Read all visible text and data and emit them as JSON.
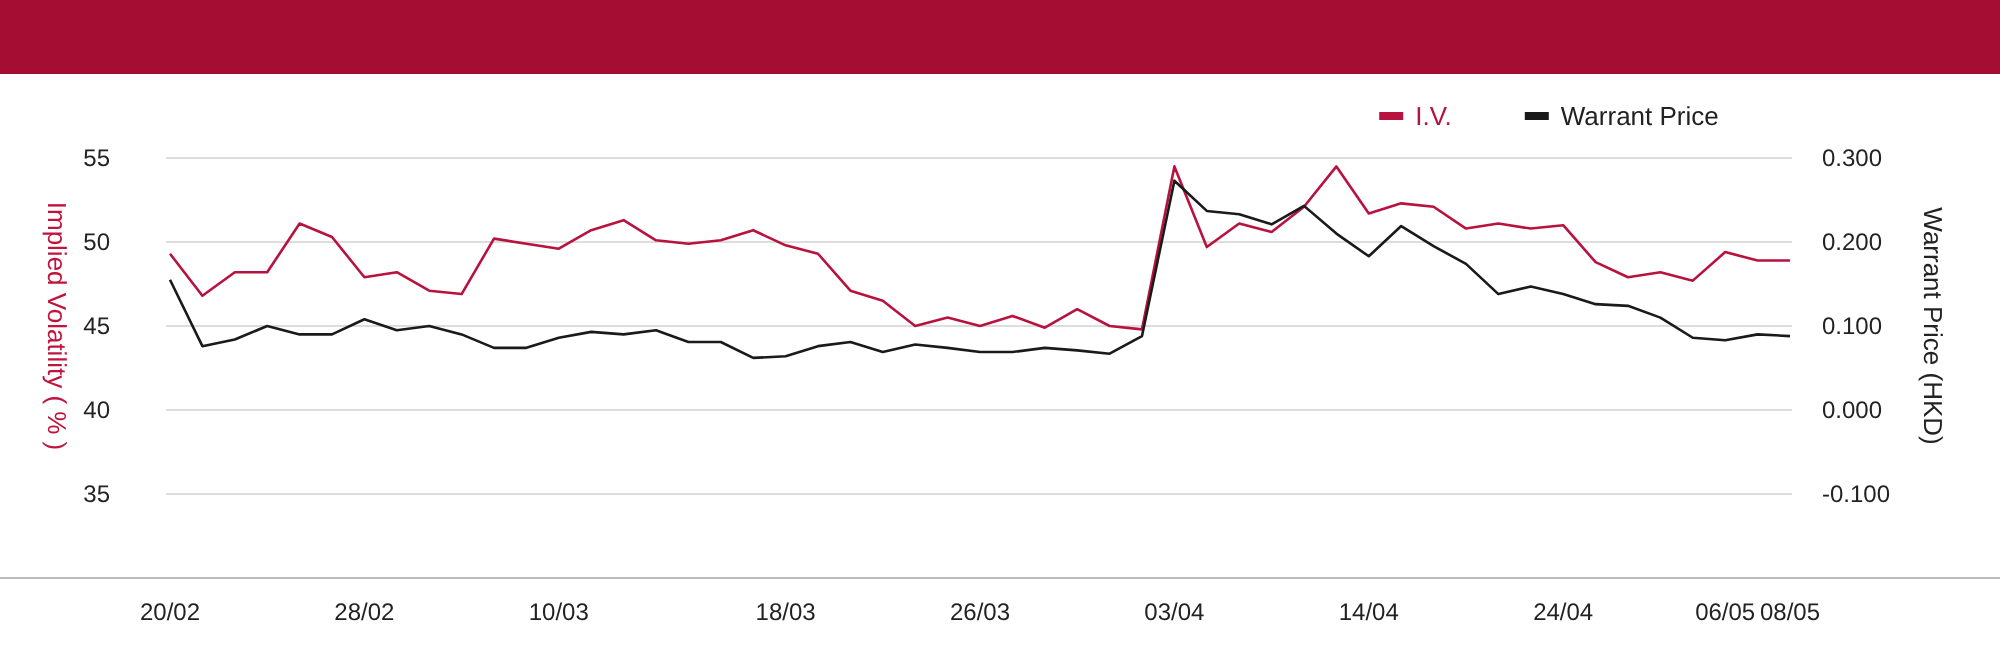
{
  "chart_data": {
    "type": "line",
    "categories": [
      "20/02",
      null,
      null,
      null,
      null,
      null,
      "28/02",
      null,
      null,
      null,
      null,
      null,
      "10/03",
      null,
      null,
      null,
      null,
      null,
      null,
      "18/03",
      null,
      null,
      null,
      null,
      null,
      "26/03",
      null,
      null,
      null,
      null,
      null,
      "03/04",
      null,
      null,
      null,
      null,
      null,
      "14/04",
      null,
      null,
      null,
      null,
      null,
      "24/04",
      null,
      null,
      null,
      null,
      "06/05",
      null,
      "08/05"
    ],
    "series": [
      {
        "name": "I.V.",
        "color": "#b8123f",
        "values": [
          49.3,
          46.8,
          48.2,
          48.2,
          51.1,
          50.3,
          47.9,
          48.2,
          47.1,
          46.9,
          50.2,
          49.9,
          49.6,
          50.7,
          51.3,
          50.1,
          49.9,
          50.1,
          50.7,
          49.8,
          49.3,
          47.1,
          46.5,
          45.0,
          45.5,
          45.0,
          45.6,
          44.9,
          46.0,
          45.0,
          44.8,
          54.5,
          49.7,
          51.1,
          50.6,
          52.1,
          54.5,
          51.7,
          52.3,
          52.1,
          50.8,
          51.1,
          50.8,
          51.0,
          48.8,
          47.9,
          48.2,
          47.7,
          49.4,
          48.9,
          48.9
        ]
      },
      {
        "name": "Warrant Price",
        "color": "#1a1a1a",
        "axis": "y2",
        "values": [
          0.155,
          0.076,
          0.084,
          0.1,
          0.09,
          0.09,
          0.108,
          0.095,
          0.1,
          0.09,
          0.074,
          0.074,
          0.086,
          0.093,
          0.09,
          0.095,
          0.081,
          0.081,
          0.062,
          0.064,
          0.076,
          0.081,
          0.069,
          0.078,
          0.074,
          0.069,
          0.069,
          0.074,
          0.071,
          0.067,
          0.088,
          0.273,
          0.237,
          0.233,
          0.221,
          0.243,
          0.21,
          0.183,
          0.219,
          0.195,
          0.174,
          0.138,
          0.147,
          0.138,
          0.126,
          0.124,
          0.11,
          0.086,
          0.083,
          0.09,
          0.088
        ]
      }
    ],
    "ylabel": "Implied Volatility ( % )",
    "y2label": "Warrant Price (HKD)",
    "ylim": [
      30,
      55
    ],
    "yticks": [
      35,
      40,
      45,
      50,
      55
    ],
    "y2lim": [
      -0.2,
      0.3
    ],
    "y2ticks": [
      {
        "value": -0.1,
        "label": "-0.100"
      },
      {
        "value": 0,
        "label": "0.000"
      },
      {
        "value": 0.1,
        "label": "0.100"
      },
      {
        "value": 0.2,
        "label": "0.200"
      },
      {
        "value": 0.3,
        "label": "0.300"
      }
    ],
    "grid": "y",
    "legend": "top right",
    "marker": "none",
    "line_style": "solid"
  }
}
